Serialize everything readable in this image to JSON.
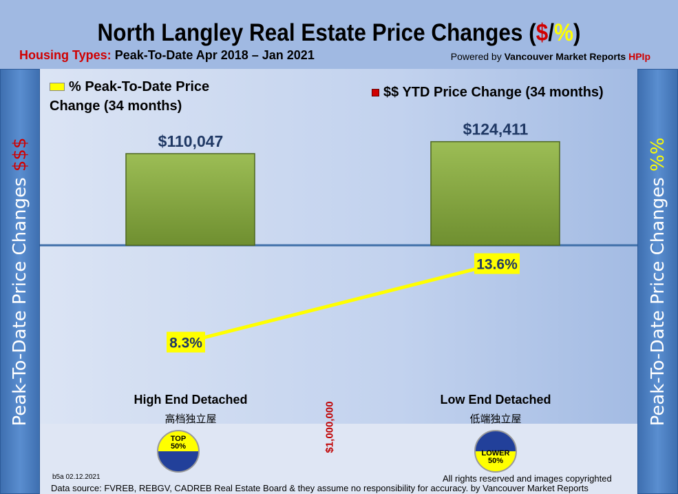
{
  "header": {
    "title_main": "North Langley Real Estate Price Changes (",
    "title_dollar": "$",
    "title_slash": "/",
    "title_pct": "%",
    "title_close": ")",
    "subtitle_label": "Housing Types:",
    "subtitle": " Peak-To-Date Apr 2018 – Jan 2021",
    "powered_prefix": "Powered by ",
    "powered_brand": "Vancouver Market Reports ",
    "powered_hpi": "HPIp"
  },
  "side": {
    "left_text": "Peak-To-Date Price Changes ",
    "left_sym": "$$$",
    "right_text": "Peak-To-Date  Price  Changes  ",
    "right_sym": "%%"
  },
  "chart_data": {
    "type": "bar+line",
    "categories": [
      "High End Detached",
      "Low End Detached"
    ],
    "categories_cn": [
      "高档独立屋",
      "低端独立屋"
    ],
    "series": [
      {
        "name": "$$ YTD Price Change (34 months)",
        "type": "bar",
        "values": [
          110047,
          124411
        ],
        "labels": [
          "$110,047",
          "$124,411"
        ],
        "color": "#7a9a3a"
      },
      {
        "name": "% Peak-To-Date Price Change (34 months)",
        "type": "line",
        "values": [
          8.3,
          13.6
        ],
        "labels": [
          "8.3%",
          "13.6%"
        ],
        "color": "#ffff00"
      }
    ],
    "legend": {
      "pct_line1": "% Peak-To-Date Price",
      "pct_line2": "Change (34 months)",
      "dollar": "$$ YTD Price Change (34 months)"
    },
    "divider_label": "$1,000,000"
  },
  "badges": [
    {
      "line1": "TOP",
      "line2": "50%"
    },
    {
      "line1": "LOWER",
      "line2": "50%"
    }
  ],
  "footer": {
    "version": "b5a 02.12.2021",
    "rights": "All rights reserved and  images copyrighted",
    "source": "Data source: FVREB, REBGV, CADREB Real Estate Board & they assume no responsibility for accuracy. by Vancouver Market Reports"
  }
}
